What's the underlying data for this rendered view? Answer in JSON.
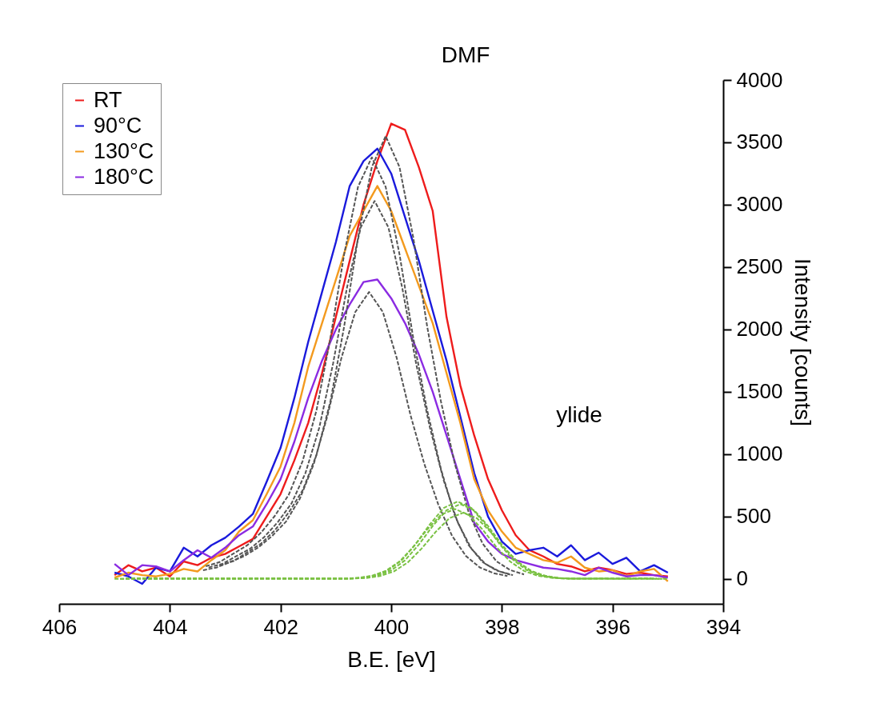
{
  "chart_data": {
    "type": "line",
    "xlabel": "B.E. [eV]",
    "ylabel": "Intensity [counts]",
    "x": [
      405,
      404.75,
      404.5,
      404.25,
      404,
      403.75,
      403.5,
      403.25,
      403,
      402.75,
      402.5,
      402.25,
      402,
      401.75,
      401.5,
      401.25,
      401,
      400.75,
      400.5,
      400.25,
      400,
      399.75,
      399.5,
      399.25,
      399,
      398.75,
      398.5,
      398.25,
      398,
      397.75,
      397.5,
      397.25,
      397,
      396.75,
      396.5,
      396.25,
      396,
      395.75,
      395.5,
      395.25,
      395
    ],
    "series": [
      {
        "name": "RT",
        "color": "#ee1c1c",
        "values": [
          30,
          110,
          60,
          90,
          20,
          140,
          110,
          170,
          200,
          260,
          320,
          500,
          680,
          950,
          1250,
          1650,
          2100,
          2550,
          3000,
          3350,
          3650,
          3600,
          3300,
          2950,
          2100,
          1550,
          1150,
          800,
          550,
          350,
          230,
          180,
          120,
          100,
          60,
          90,
          70,
          40,
          50,
          30,
          20
        ]
      },
      {
        "name": "90°C",
        "color": "#1a1adc",
        "values": [
          50,
          20,
          -40,
          90,
          60,
          250,
          180,
          270,
          330,
          420,
          520,
          780,
          1050,
          1450,
          1900,
          2300,
          2700,
          3150,
          3350,
          3450,
          3250,
          2900,
          2550,
          2150,
          1750,
          1300,
          850,
          500,
          300,
          200,
          230,
          250,
          180,
          270,
          150,
          210,
          120,
          170,
          60,
          110,
          50
        ]
      },
      {
        "name": "130°C",
        "color": "#f39a1e",
        "values": [
          10,
          50,
          30,
          20,
          40,
          80,
          60,
          150,
          230,
          380,
          470,
          680,
          900,
          1250,
          1700,
          2050,
          2400,
          2750,
          2950,
          3150,
          2950,
          2650,
          2350,
          2050,
          1650,
          1250,
          800,
          550,
          380,
          250,
          200,
          150,
          130,
          180,
          90,
          60,
          70,
          20,
          60,
          80,
          -20
        ]
      },
      {
        "name": "180°C",
        "color": "#8b2be2",
        "values": [
          120,
          30,
          110,
          100,
          60,
          150,
          230,
          170,
          250,
          350,
          420,
          600,
          800,
          1100,
          1450,
          1750,
          2000,
          2200,
          2380,
          2400,
          2250,
          2050,
          1800,
          1500,
          1150,
          800,
          450,
          300,
          200,
          150,
          120,
          90,
          80,
          60,
          30,
          90,
          50,
          20,
          30,
          30,
          10
        ]
      },
      {
        "color": "#555555",
        "line_style": "dashed",
        "x": [
          403.1,
          402.85,
          402.6,
          402.35,
          402.1,
          401.85,
          401.6,
          401.35,
          401.1,
          400.85,
          400.6,
          400.35,
          400.1,
          399.85,
          399.6,
          399.35,
          399.1,
          398.85,
          398.6,
          398.35,
          398.1,
          397.85,
          397.6
        ],
        "values": [
          107,
          142,
          213,
          284,
          391,
          533,
          710,
          994,
          1420,
          2024,
          2734,
          3302,
          3550,
          3302,
          2734,
          2024,
          1420,
          923,
          533,
          284,
          142,
          71,
          36
        ]
      },
      {
        "color": "#555555",
        "line_style": "dashed",
        "x": [
          403.35,
          403.1,
          402.85,
          402.6,
          402.35,
          402.1,
          401.85,
          401.6,
          401.35,
          401.1,
          400.85,
          400.6,
          400.35,
          400.1,
          399.85,
          399.6,
          399.35,
          399.1,
          398.85,
          398.6,
          398.35,
          398.1,
          397.85
        ],
        "values": [
          101,
          135,
          203,
          270,
          372,
          507,
          676,
          946,
          1352,
          1927,
          2603,
          3143,
          3380,
          3143,
          2603,
          1927,
          1352,
          879,
          507,
          270,
          135,
          68,
          34
        ]
      },
      {
        "color": "#555555",
        "line_style": "dashed",
        "x": [
          403.3,
          403.05,
          402.8,
          402.55,
          402.3,
          402.05,
          401.8,
          401.55,
          401.3,
          401.05,
          400.8,
          400.55,
          400.3,
          400.05,
          399.8,
          399.55,
          399.3,
          399.05,
          398.8,
          398.55,
          398.3,
          398.05,
          397.8
        ],
        "values": [
          91,
          121,
          182,
          242,
          333,
          455,
          606,
          848,
          1212,
          1727,
          2333,
          2818,
          3030,
          2818,
          2333,
          1727,
          1212,
          788,
          455,
          242,
          121,
          61,
          30
        ]
      },
      {
        "color": "#555555",
        "line_style": "dashed",
        "x": [
          403.4,
          403.15,
          402.9,
          402.65,
          402.4,
          402.15,
          401.9,
          401.65,
          401.4,
          401.15,
          400.9,
          400.65,
          400.4,
          400.15,
          399.9,
          399.65,
          399.4,
          399.15,
          398.9,
          398.65,
          398.4,
          398.15,
          397.9
        ],
        "values": [
          69,
          92,
          138,
          184,
          253,
          345,
          460,
          644,
          920,
          1311,
          1771,
          2139,
          2300,
          2139,
          1771,
          1311,
          920,
          598,
          345,
          184,
          92,
          46,
          23
        ]
      },
      {
        "color": "#7ac143",
        "line_style": "dashed",
        "x": [
          405,
          400.8,
          400.55,
          400.3,
          400.05,
          399.8,
          399.55,
          399.3,
          399.05,
          398.8,
          398.55,
          398.3,
          398.05,
          397.8,
          397.55,
          397.3,
          397.05,
          396.8,
          395
        ],
        "values": [
          0,
          2,
          9,
          27,
          71,
          154,
          284,
          438,
          569,
          620,
          569,
          438,
          284,
          154,
          71,
          27,
          9,
          2,
          0
        ]
      },
      {
        "color": "#7ac143",
        "line_style": "dashed",
        "x": [
          404.9,
          400.75,
          400.5,
          400.25,
          400,
          399.75,
          399.5,
          399.25,
          399,
          398.75,
          398.5,
          398.25,
          398,
          397.75,
          397.5,
          397.25,
          397,
          396.75,
          395.1
        ],
        "values": [
          1,
          2,
          8,
          26,
          68,
          149,
          275,
          424,
          550,
          600,
          550,
          424,
          275,
          149,
          68,
          26,
          8,
          2,
          1
        ]
      },
      {
        "color": "#7ac143",
        "line_style": "dashed",
        "x": [
          404.8,
          400.85,
          400.6,
          400.35,
          400.1,
          399.85,
          399.6,
          399.35,
          399.1,
          398.85,
          398.6,
          398.35,
          398.1,
          397.85,
          397.6,
          397.35,
          397.1,
          396.85,
          395.2
        ],
        "values": [
          3,
          2,
          8,
          25,
          64,
          139,
          256,
          396,
          514,
          560,
          514,
          396,
          256,
          139,
          64,
          25,
          8,
          2,
          3
        ]
      },
      {
        "color": "#7ac143",
        "line_style": "dashed",
        "x": [
          404.7,
          400.7,
          400.45,
          400.2,
          399.95,
          399.7,
          399.45,
          399.2,
          398.95,
          398.7,
          398.45,
          398.2,
          397.95,
          397.7,
          397.45,
          397.2,
          396.95,
          396.7,
          395.3
        ],
        "values": [
          5,
          2,
          7,
          23,
          60,
          132,
          243,
          375,
          486,
          530,
          486,
          375,
          243,
          132,
          60,
          23,
          7,
          2,
          5
        ]
      }
    ],
    "annotations": [
      "DMF",
      "ylide"
    ],
    "xlim": [
      406,
      394
    ],
    "xticks": [
      406,
      404,
      402,
      400,
      398,
      396,
      394
    ],
    "ylim": [
      -200,
      4000
    ],
    "yticks": [
      0,
      500,
      1000,
      1500,
      2000,
      2500,
      3000,
      3500,
      4000
    ],
    "grid": false,
    "legend": "top left",
    "line_style": "solid"
  }
}
